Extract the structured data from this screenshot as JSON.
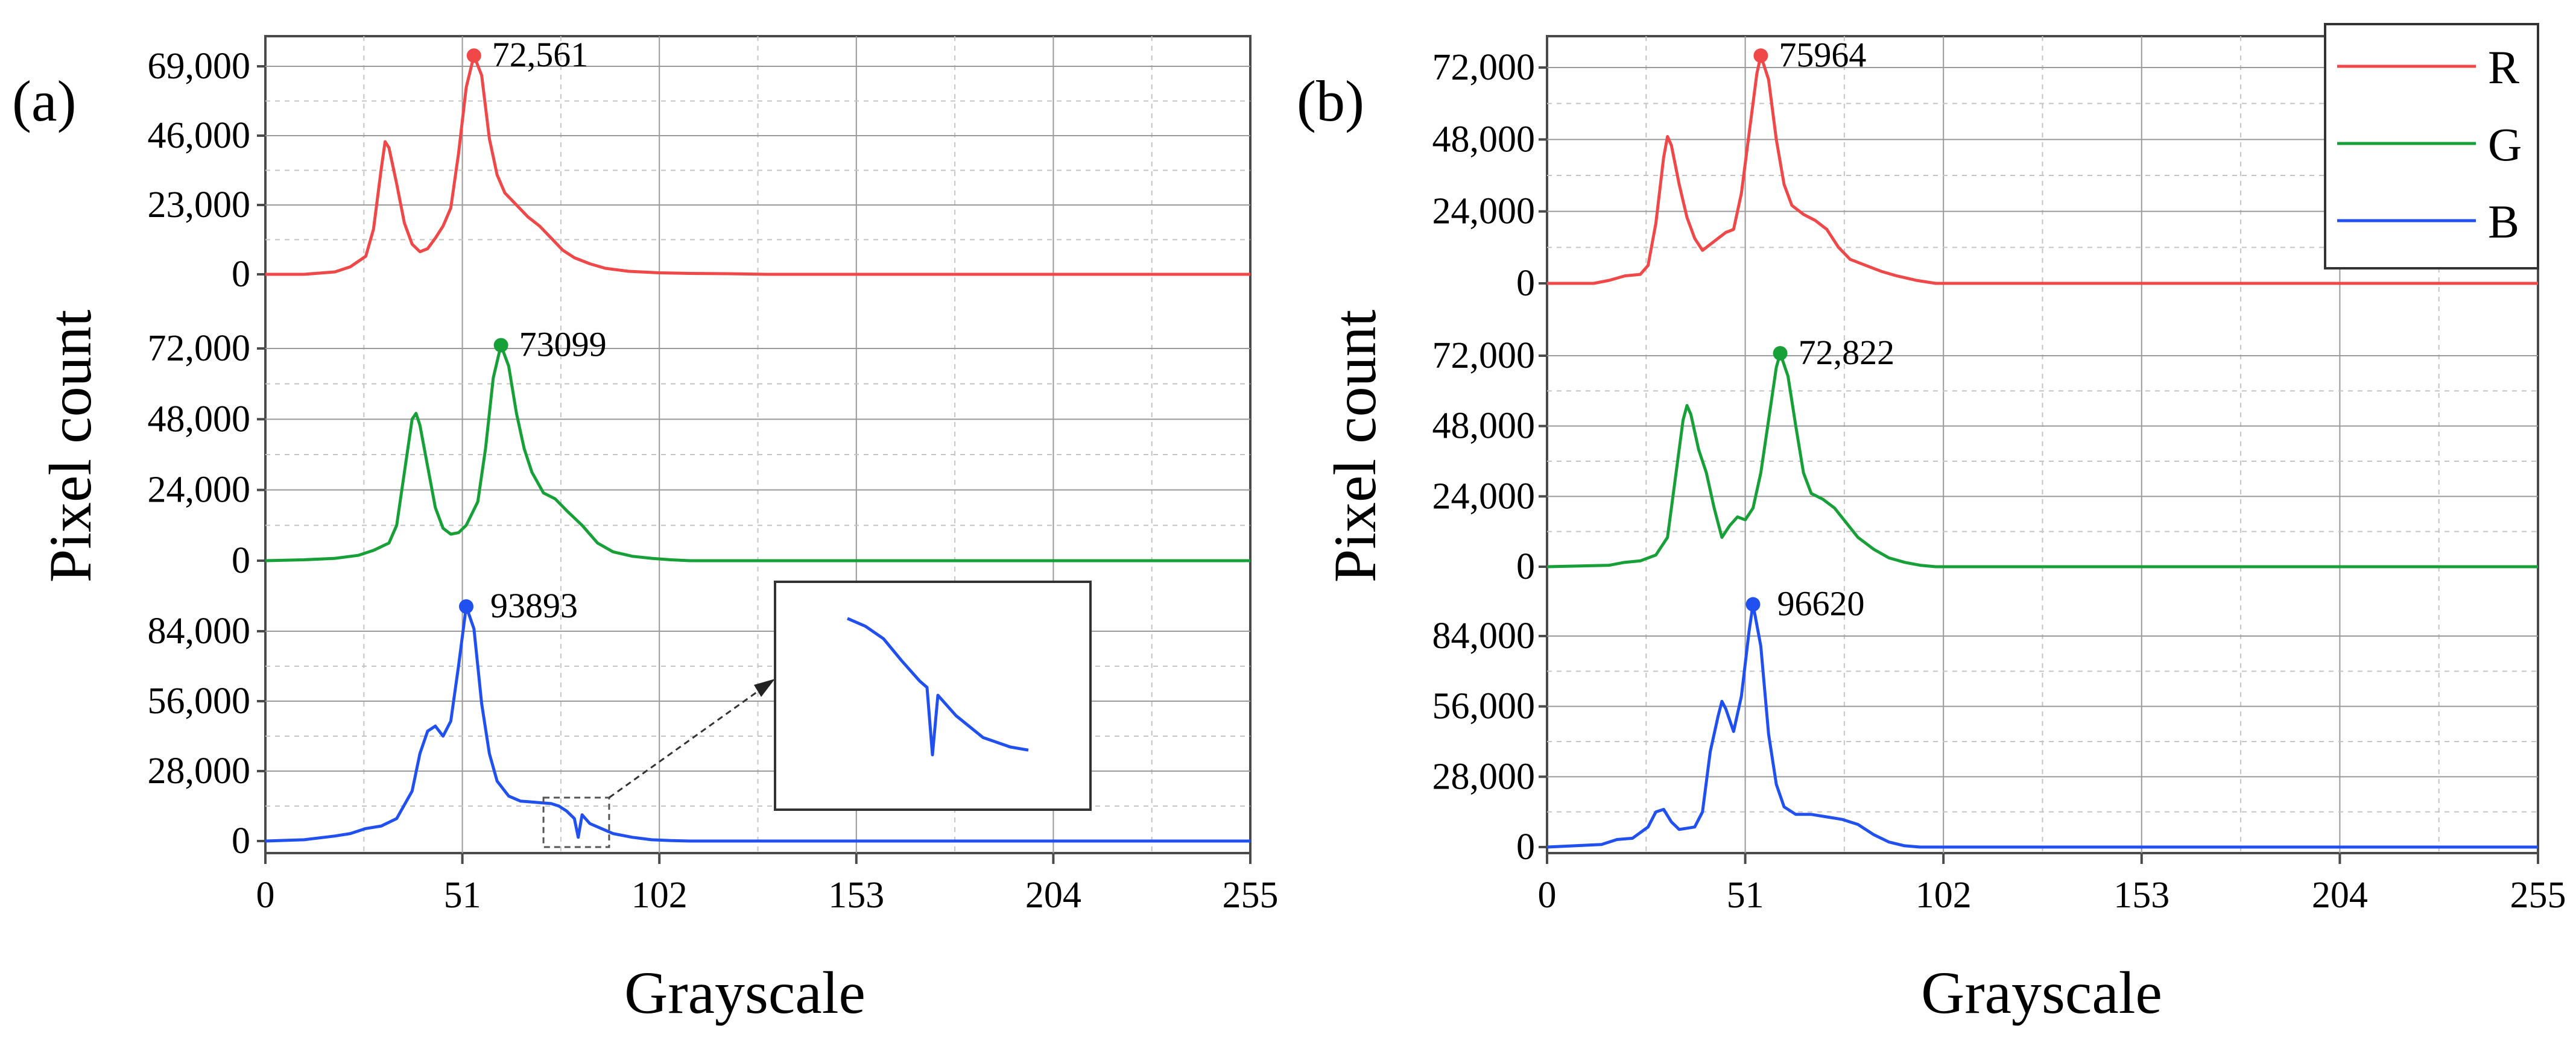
{
  "chart_data": [
    {
      "panel": "(a)",
      "type": "line",
      "xlabel": "Grayscale",
      "ylabel": "Pixel count",
      "xlim": [
        0,
        255
      ],
      "xticks": [
        "0",
        "51",
        "102",
        "153",
        "204",
        "255"
      ],
      "grid": true,
      "subplots": [
        {
          "channel": "R",
          "color": "#f04848",
          "ylim": [
            0,
            75000
          ],
          "yticks": [
            "0",
            "23,000",
            "46,000",
            "69,000"
          ],
          "peak": {
            "x": 54,
            "y": 72561,
            "label": "72,561"
          },
          "points": [
            [
              0,
              0
            ],
            [
              10,
              0
            ],
            [
              18,
              800
            ],
            [
              22,
              2500
            ],
            [
              26,
              6000
            ],
            [
              28,
              15000
            ],
            [
              30,
              35000
            ],
            [
              31,
              44000
            ],
            [
              32,
              42000
            ],
            [
              34,
              30000
            ],
            [
              36,
              17000
            ],
            [
              38,
              10000
            ],
            [
              40,
              7500
            ],
            [
              42,
              8500
            ],
            [
              44,
              12000
            ],
            [
              46,
              16000
            ],
            [
              48,
              22000
            ],
            [
              50,
              40000
            ],
            [
              52,
              62000
            ],
            [
              54,
              72561
            ],
            [
              56,
              66000
            ],
            [
              58,
              45000
            ],
            [
              60,
              33000
            ],
            [
              62,
              27000
            ],
            [
              65,
              23000
            ],
            [
              68,
              19000
            ],
            [
              71,
              16000
            ],
            [
              74,
              12000
            ],
            [
              77,
              8000
            ],
            [
              80,
              5500
            ],
            [
              84,
              3500
            ],
            [
              88,
              2000
            ],
            [
              94,
              1000
            ],
            [
              102,
              500
            ],
            [
              110,
              300
            ],
            [
              120,
              200
            ],
            [
              125,
              100
            ],
            [
              130,
              0
            ],
            [
              255,
              0
            ]
          ]
        },
        {
          "channel": "G",
          "color": "#18a038",
          "ylim": [
            0,
            78000
          ],
          "yticks": [
            "0",
            "24,000",
            "48,000",
            "72,000"
          ],
          "peak": {
            "x": 61,
            "y": 73099,
            "label": "73099"
          },
          "points": [
            [
              0,
              0
            ],
            [
              10,
              300
            ],
            [
              18,
              800
            ],
            [
              24,
              1800
            ],
            [
              28,
              3500
            ],
            [
              32,
              6000
            ],
            [
              34,
              12000
            ],
            [
              36,
              30000
            ],
            [
              38,
              48000
            ],
            [
              39,
              50000
            ],
            [
              40,
              46000
            ],
            [
              42,
              32000
            ],
            [
              44,
              18000
            ],
            [
              46,
              11000
            ],
            [
              48,
              9000
            ],
            [
              50,
              9500
            ],
            [
              52,
              12000
            ],
            [
              55,
              20000
            ],
            [
              57,
              38000
            ],
            [
              59,
              62000
            ],
            [
              61,
              73099
            ],
            [
              63,
              66000
            ],
            [
              65,
              50000
            ],
            [
              67,
              38000
            ],
            [
              69,
              30000
            ],
            [
              72,
              23000
            ],
            [
              75,
              21000
            ],
            [
              78,
              17000
            ],
            [
              82,
              12000
            ],
            [
              86,
              6000
            ],
            [
              90,
              3000
            ],
            [
              95,
              1500
            ],
            [
              100,
              800
            ],
            [
              105,
              300
            ],
            [
              110,
              0
            ],
            [
              255,
              0
            ]
          ]
        },
        {
          "channel": "B",
          "color": "#2050f0",
          "ylim": [
            0,
            100000
          ],
          "yticks": [
            "0",
            "28,000",
            "56,000",
            "84,000"
          ],
          "peak": {
            "x": 52,
            "y": 93893,
            "label": "93893"
          },
          "points": [
            [
              0,
              0
            ],
            [
              10,
              500
            ],
            [
              18,
              2000
            ],
            [
              22,
              3000
            ],
            [
              26,
              5000
            ],
            [
              30,
              6000
            ],
            [
              34,
              9000
            ],
            [
              38,
              20000
            ],
            [
              40,
              35000
            ],
            [
              42,
              44000
            ],
            [
              44,
              46000
            ],
            [
              46,
              42000
            ],
            [
              48,
              48000
            ],
            [
              50,
              70000
            ],
            [
              52,
              93893
            ],
            [
              54,
              85000
            ],
            [
              56,
              55000
            ],
            [
              58,
              35000
            ],
            [
              60,
              24000
            ],
            [
              63,
              18000
            ],
            [
              66,
              16000
            ],
            [
              70,
              15500
            ],
            [
              74,
              15000
            ],
            [
              76,
              14000
            ],
            [
              78,
              12000
            ],
            [
              80,
              9000
            ],
            [
              81,
              1500
            ],
            [
              82,
              10500
            ],
            [
              84,
              7000
            ],
            [
              87,
              5000
            ],
            [
              90,
              3000
            ],
            [
              95,
              1500
            ],
            [
              100,
              500
            ],
            [
              105,
              200
            ],
            [
              110,
              0
            ],
            [
              255,
              0
            ]
          ]
        }
      ],
      "inset": {
        "points": [
          [
            0,
            0.92
          ],
          [
            0.1,
            0.87
          ],
          [
            0.2,
            0.79
          ],
          [
            0.3,
            0.65
          ],
          [
            0.4,
            0.52
          ],
          [
            0.44,
            0.48
          ],
          [
            0.47,
            0.05
          ],
          [
            0.5,
            0.43
          ],
          [
            0.6,
            0.3
          ],
          [
            0.75,
            0.16
          ],
          [
            0.9,
            0.1
          ],
          [
            1,
            0.08
          ]
        ]
      }
    },
    {
      "panel": "(b)",
      "type": "line",
      "xlabel": "Grayscale",
      "ylabel": "Pixel count",
      "xlim": [
        0,
        255
      ],
      "xticks": [
        "0",
        "51",
        "102",
        "153",
        "204",
        "255"
      ],
      "grid": true,
      "legend": {
        "position": "top-right",
        "entries": [
          {
            "label": "R",
            "color": "#f04848"
          },
          {
            "label": "G",
            "color": "#18a038"
          },
          {
            "label": "B",
            "color": "#2050f0"
          }
        ]
      },
      "subplots": [
        {
          "channel": "R",
          "color": "#f04848",
          "ylim": [
            0,
            78000
          ],
          "yticks": [
            "0",
            "24,000",
            "48,000",
            "72,000"
          ],
          "peak": {
            "x": 55,
            "y": 75964,
            "label": "75964"
          },
          "points": [
            [
              0,
              0
            ],
            [
              12,
              0
            ],
            [
              16,
              1000
            ],
            [
              20,
              2500
            ],
            [
              24,
              3000
            ],
            [
              26,
              6000
            ],
            [
              28,
              20000
            ],
            [
              30,
              42000
            ],
            [
              31,
              49000
            ],
            [
              32,
              46000
            ],
            [
              34,
              33000
            ],
            [
              36,
              22000
            ],
            [
              38,
              15000
            ],
            [
              40,
              11000
            ],
            [
              42,
              13000
            ],
            [
              44,
              15000
            ],
            [
              46,
              17000
            ],
            [
              48,
              18000
            ],
            [
              50,
              30000
            ],
            [
              52,
              50000
            ],
            [
              54,
              70000
            ],
            [
              55,
              75964
            ],
            [
              57,
              68000
            ],
            [
              59,
              48000
            ],
            [
              61,
              33000
            ],
            [
              63,
              26000
            ],
            [
              66,
              23000
            ],
            [
              69,
              21000
            ],
            [
              72,
              18000
            ],
            [
              75,
              12000
            ],
            [
              78,
              8000
            ],
            [
              82,
              6000
            ],
            [
              86,
              4000
            ],
            [
              90,
              2500
            ],
            [
              95,
              1000
            ],
            [
              100,
              0
            ],
            [
              255,
              0
            ]
          ]
        },
        {
          "channel": "G",
          "color": "#18a038",
          "ylim": [
            0,
            78000
          ],
          "yticks": [
            "0",
            "24,000",
            "48,000",
            "72,000"
          ],
          "peak": {
            "x": 60,
            "y": 72822,
            "label": "72,822"
          },
          "points": [
            [
              0,
              0
            ],
            [
              16,
              500
            ],
            [
              20,
              1500
            ],
            [
              24,
              2000
            ],
            [
              28,
              4000
            ],
            [
              31,
              10000
            ],
            [
              33,
              30000
            ],
            [
              35,
              50000
            ],
            [
              36,
              55000
            ],
            [
              37,
              52000
            ],
            [
              39,
              40000
            ],
            [
              41,
              32000
            ],
            [
              43,
              20000
            ],
            [
              45,
              10000
            ],
            [
              47,
              14000
            ],
            [
              49,
              17000
            ],
            [
              51,
              16000
            ],
            [
              53,
              20000
            ],
            [
              55,
              32000
            ],
            [
              57,
              50000
            ],
            [
              59,
              68000
            ],
            [
              60,
              72822
            ],
            [
              62,
              65000
            ],
            [
              64,
              48000
            ],
            [
              66,
              32000
            ],
            [
              68,
              25000
            ],
            [
              71,
              23000
            ],
            [
              74,
              20000
            ],
            [
              77,
              15000
            ],
            [
              80,
              10000
            ],
            [
              84,
              6000
            ],
            [
              88,
              3000
            ],
            [
              92,
              1500
            ],
            [
              96,
              500
            ],
            [
              100,
              0
            ],
            [
              255,
              0
            ]
          ]
        },
        {
          "channel": "B",
          "color": "#2050f0",
          "ylim": [
            0,
            100000
          ],
          "yticks": [
            "0",
            "28,000",
            "56,000",
            "84,000"
          ],
          "peak": {
            "x": 53,
            "y": 96620,
            "label": "96620"
          },
          "points": [
            [
              0,
              0
            ],
            [
              14,
              1000
            ],
            [
              18,
              3000
            ],
            [
              22,
              3500
            ],
            [
              26,
              8000
            ],
            [
              28,
              14000
            ],
            [
              30,
              15000
            ],
            [
              32,
              10000
            ],
            [
              34,
              7000
            ],
            [
              38,
              8000
            ],
            [
              40,
              14000
            ],
            [
              42,
              38000
            ],
            [
              44,
              52000
            ],
            [
              45,
              58000
            ],
            [
              46,
              55000
            ],
            [
              48,
              46000
            ],
            [
              50,
              60000
            ],
            [
              52,
              86000
            ],
            [
              53,
              96620
            ],
            [
              55,
              80000
            ],
            [
              57,
              45000
            ],
            [
              59,
              25000
            ],
            [
              61,
              16000
            ],
            [
              64,
              13000
            ],
            [
              68,
              13000
            ],
            [
              72,
              12000
            ],
            [
              76,
              11000
            ],
            [
              80,
              9000
            ],
            [
              84,
              5000
            ],
            [
              88,
              2000
            ],
            [
              92,
              500
            ],
            [
              96,
              0
            ],
            [
              255,
              0
            ]
          ]
        }
      ]
    }
  ]
}
